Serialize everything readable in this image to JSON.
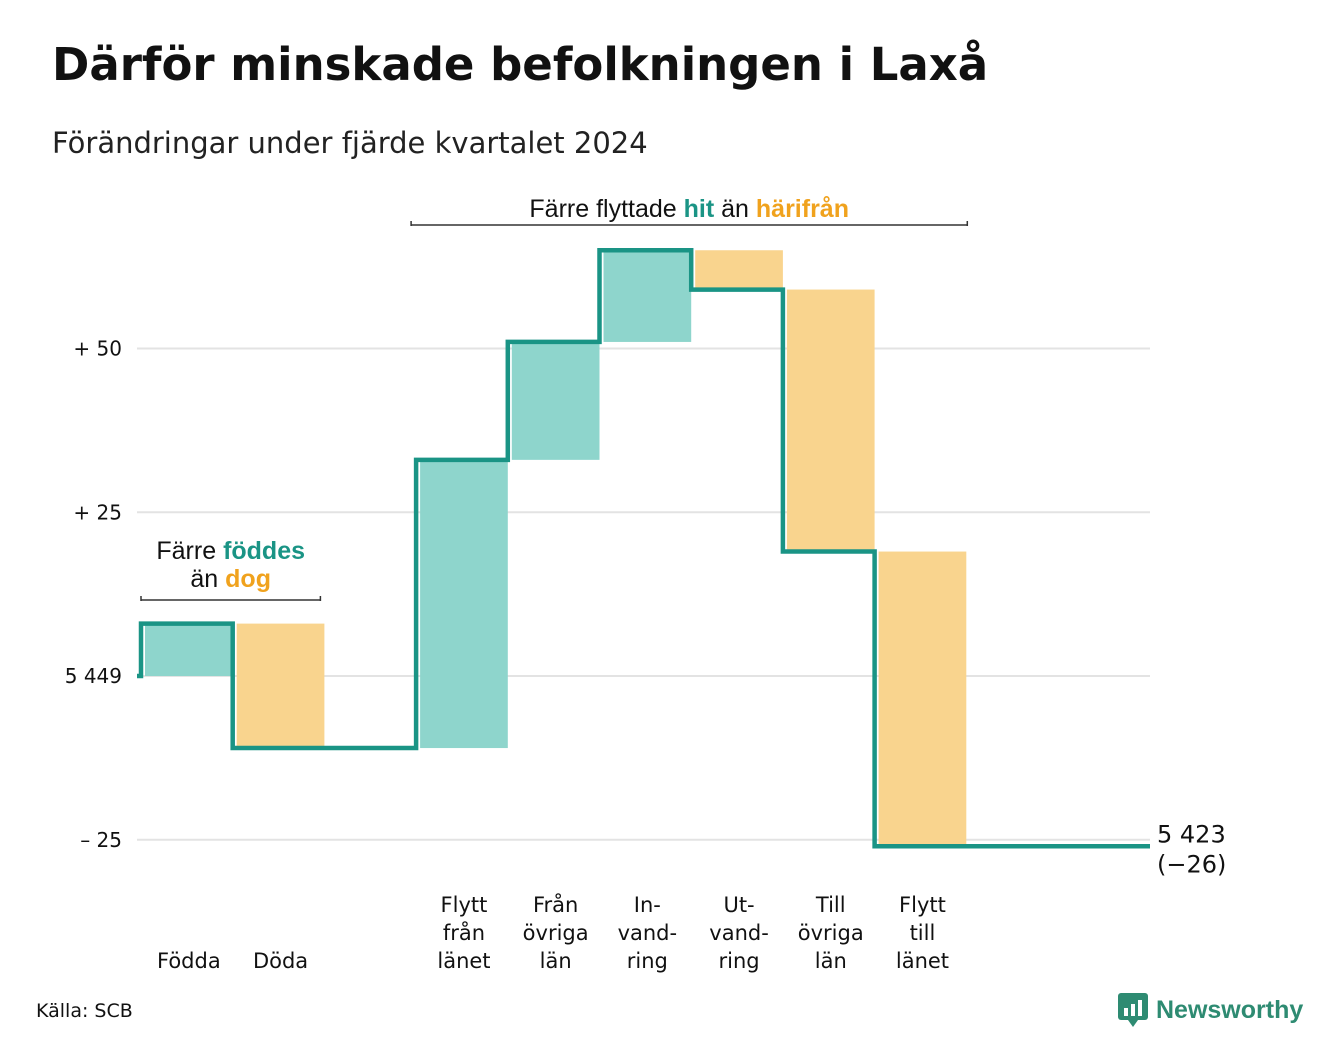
{
  "title": "Därför minskade befolkningen i Laxå",
  "subtitle": "Förändringar under fjärde kvartalet 2024",
  "source": "Källa: SCB",
  "brand": "Newsworthy",
  "colors": {
    "increase": "#8ed5cc",
    "decrease": "#f9d48e",
    "line": "#1a9485",
    "accent_teal": "#1a9485",
    "accent_orange": "#f0a21d",
    "grid": "#e3e3e3"
  },
  "chart_data": {
    "type": "waterfall",
    "base": 5449,
    "end_value": 5423,
    "end_label": [
      "5 423",
      "(−26)"
    ],
    "yticks": [
      {
        "value": 50,
        "label": "+ 50"
      },
      {
        "value": 25,
        "label": "+ 25"
      },
      {
        "value": 0,
        "label": "5 449"
      },
      {
        "value": -25,
        "label": "– 25"
      }
    ],
    "ylim": [
      -26,
      65
    ],
    "steps": [
      {
        "lines": [
          "Födda"
        ],
        "delta": 8,
        "direction": "increase"
      },
      {
        "lines": [
          "Döda"
        ],
        "delta": -19,
        "direction": "decrease"
      },
      {
        "lines": [
          ""
        ],
        "delta": 0,
        "direction": "none"
      },
      {
        "lines": [
          "Flytt",
          "från",
          "länet"
        ],
        "delta": 44,
        "direction": "increase"
      },
      {
        "lines": [
          "Från",
          "övriga",
          "län"
        ],
        "delta": 18,
        "direction": "increase"
      },
      {
        "lines": [
          "In-",
          "vand-",
          "ring"
        ],
        "delta": 14,
        "direction": "increase"
      },
      {
        "lines": [
          "Ut-",
          "vand-",
          "ring"
        ],
        "delta": -6,
        "direction": "decrease"
      },
      {
        "lines": [
          "Till",
          "övriga",
          "län"
        ],
        "delta": -40,
        "direction": "decrease"
      },
      {
        "lines": [
          "Flytt",
          "till",
          "länet"
        ],
        "delta": -45,
        "direction": "decrease"
      }
    ],
    "annotations": [
      {
        "parts": [
          {
            "text": "Färre ",
            "style": "plain"
          },
          {
            "text": "föddes",
            "style": "teal"
          }
        ],
        "parts2": [
          {
            "text": "än ",
            "style": "plain"
          },
          {
            "text": "dog",
            "style": "orange"
          }
        ],
        "span": [
          0,
          1
        ]
      },
      {
        "parts": [
          {
            "text": "Färre flyttade ",
            "style": "plain"
          },
          {
            "text": "hit",
            "style": "teal"
          },
          {
            "text": " än ",
            "style": "plain"
          },
          {
            "text": "härifrån",
            "style": "orange"
          }
        ],
        "span": [
          3,
          8
        ]
      }
    ]
  }
}
